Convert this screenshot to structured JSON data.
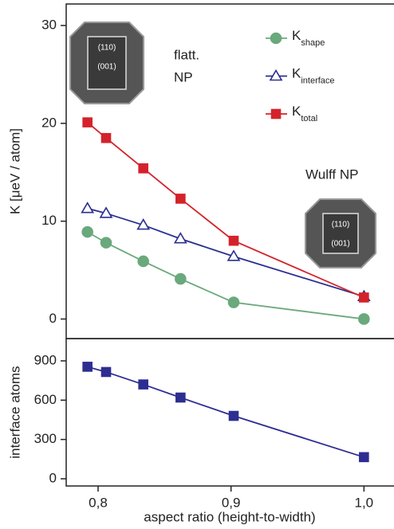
{
  "chart_data": [
    {
      "type": "line",
      "ylabel": "K [μeV / atom]",
      "x": [
        0.792,
        0.806,
        0.834,
        0.862,
        0.902,
        1.0
      ],
      "xlim": [
        0.776,
        1.022
      ],
      "ylim": [
        -2,
        32.2
      ],
      "yticks": [
        0,
        10,
        20,
        30
      ],
      "series": [
        {
          "name": "Kshape",
          "color": "#6aa97c",
          "marker": "circle",
          "filled": true,
          "values": [
            8.9,
            7.8,
            5.9,
            4.1,
            1.7,
            0
          ]
        },
        {
          "name": "Kinterface",
          "color": "#2b2f8f",
          "marker": "triangle",
          "filled": false,
          "values": [
            11.3,
            10.8,
            9.6,
            8.2,
            6.4,
            2.3
          ]
        },
        {
          "name": "Ktotal",
          "color": "#d4222b",
          "marker": "square",
          "filled": true,
          "values": [
            20.1,
            18.5,
            15.4,
            12.3,
            8.0,
            2.2
          ]
        }
      ],
      "insets": [
        {
          "caption": [
            "flatt.",
            "NP"
          ],
          "facets": [
            "(110)",
            "(001)"
          ]
        },
        {
          "caption": [
            "Wulff NP"
          ],
          "facets": [
            "(110)",
            "(001)"
          ]
        }
      ]
    },
    {
      "type": "line",
      "ylabel": "interface atoms",
      "xlabel": "aspect ratio (height-to-width)",
      "x": [
        0.792,
        0.806,
        0.834,
        0.862,
        0.902,
        1.0
      ],
      "xlim": [
        0.776,
        1.022
      ],
      "xticks": [
        {
          "value": 0.8,
          "label": "0,8"
        },
        {
          "value": 0.9,
          "label": "0,9"
        },
        {
          "value": 1.0,
          "label": "1,0"
        }
      ],
      "ylim": [
        -55,
        1070
      ],
      "yticks": [
        0,
        300,
        600,
        900
      ],
      "series": [
        {
          "color": "#2d2e91",
          "marker": "square",
          "filled": true,
          "values": [
            855,
            815,
            720,
            620,
            480,
            165
          ]
        }
      ]
    }
  ]
}
